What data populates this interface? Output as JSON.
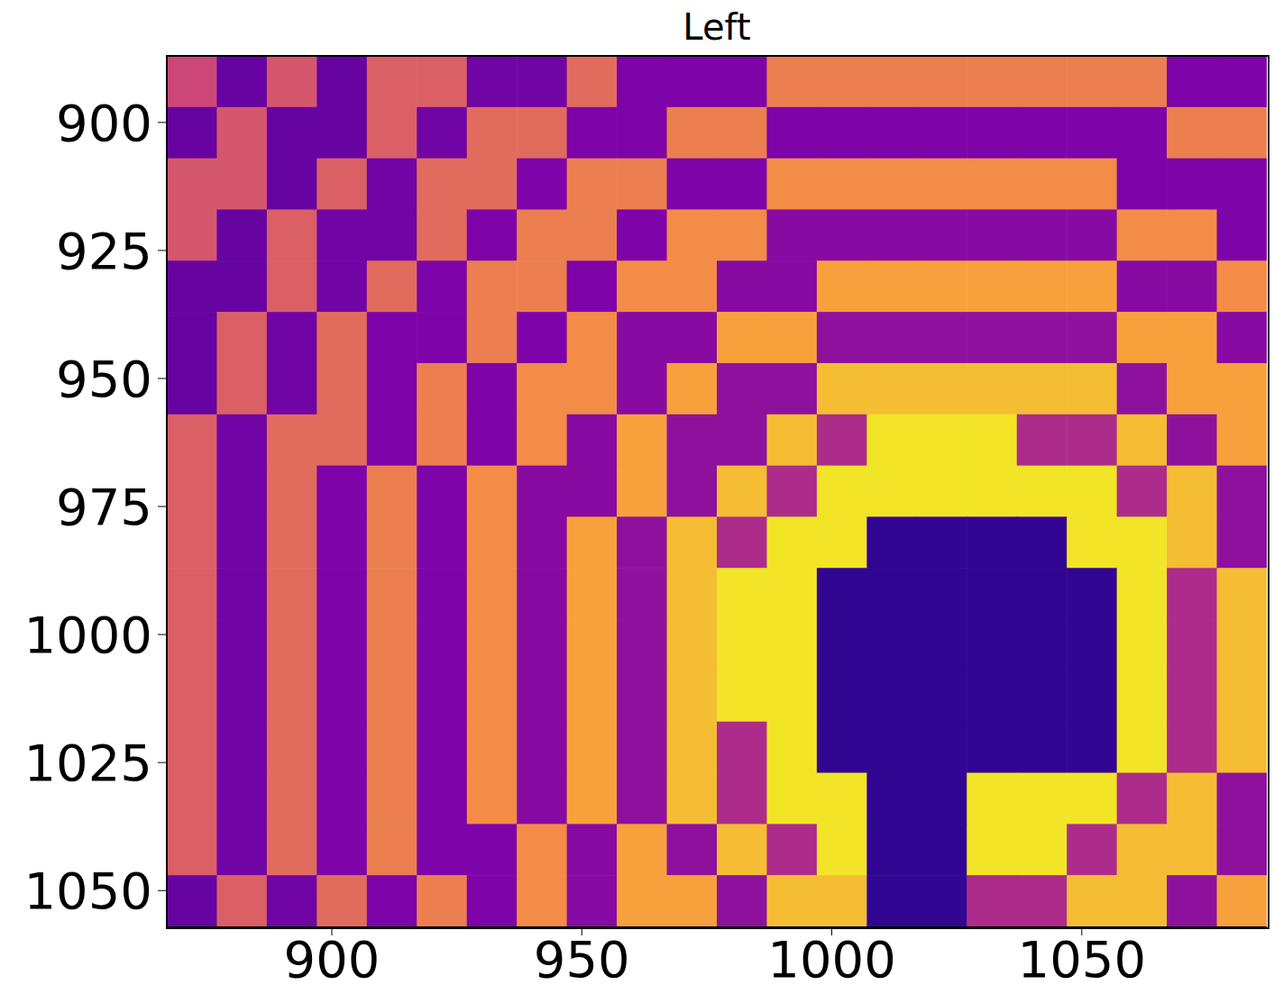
{
  "chart_data": {
    "type": "heatmap",
    "title": "Left",
    "x": [
      872,
      882,
      892,
      902,
      912,
      922,
      932,
      942,
      952,
      962,
      972,
      982,
      992,
      1002,
      1012,
      1022,
      1032,
      1042,
      1052,
      1062,
      1072,
      1082
    ],
    "y": [
      892,
      902,
      912,
      922,
      932,
      942,
      952,
      962,
      972,
      982,
      992,
      1002,
      1012,
      1022,
      1032,
      1042,
      1052
    ],
    "cells": [
      [
        0.5,
        0.2,
        0.55,
        0.2,
        0.58,
        0.58,
        0.22,
        0.22,
        0.62,
        0.25,
        0.25,
        0.25,
        0.68,
        0.68,
        0.68,
        0.68,
        0.68,
        0.68,
        0.68,
        0.68,
        0.25,
        0.25
      ],
      [
        0.2,
        0.55,
        0.2,
        0.2,
        0.58,
        0.22,
        0.62,
        0.62,
        0.25,
        0.25,
        0.68,
        0.68,
        0.25,
        0.25,
        0.25,
        0.25,
        0.25,
        0.25,
        0.25,
        0.25,
        0.68,
        0.68
      ],
      [
        0.55,
        0.55,
        0.2,
        0.58,
        0.22,
        0.62,
        0.62,
        0.25,
        0.68,
        0.68,
        0.25,
        0.25,
        0.72,
        0.72,
        0.72,
        0.72,
        0.72,
        0.72,
        0.72,
        0.25,
        0.25,
        0.25
      ],
      [
        0.55,
        0.2,
        0.58,
        0.22,
        0.22,
        0.62,
        0.25,
        0.68,
        0.68,
        0.25,
        0.72,
        0.72,
        0.28,
        0.28,
        0.28,
        0.28,
        0.28,
        0.28,
        0.28,
        0.72,
        0.72,
        0.25
      ],
      [
        0.2,
        0.2,
        0.58,
        0.22,
        0.62,
        0.25,
        0.68,
        0.68,
        0.25,
        0.72,
        0.72,
        0.28,
        0.28,
        0.78,
        0.78,
        0.78,
        0.78,
        0.78,
        0.78,
        0.28,
        0.28,
        0.72
      ],
      [
        0.2,
        0.58,
        0.22,
        0.62,
        0.25,
        0.25,
        0.68,
        0.25,
        0.72,
        0.28,
        0.28,
        0.78,
        0.78,
        0.3,
        0.3,
        0.3,
        0.3,
        0.3,
        0.3,
        0.78,
        0.78,
        0.28
      ],
      [
        0.2,
        0.58,
        0.22,
        0.62,
        0.25,
        0.68,
        0.25,
        0.72,
        0.72,
        0.28,
        0.78,
        0.3,
        0.3,
        0.85,
        0.85,
        0.85,
        0.85,
        0.85,
        0.85,
        0.3,
        0.78,
        0.78
      ],
      [
        0.58,
        0.22,
        0.62,
        0.62,
        0.25,
        0.68,
        0.25,
        0.72,
        0.28,
        0.78,
        0.3,
        0.3,
        0.85,
        0.4,
        0.95,
        0.95,
        0.95,
        0.4,
        0.4,
        0.85,
        0.3,
        0.78
      ],
      [
        0.58,
        0.22,
        0.62,
        0.25,
        0.68,
        0.25,
        0.72,
        0.28,
        0.28,
        0.78,
        0.3,
        0.85,
        0.4,
        0.95,
        0.95,
        0.95,
        0.95,
        0.95,
        0.95,
        0.4,
        0.85,
        0.3
      ],
      [
        0.58,
        0.22,
        0.62,
        0.25,
        0.68,
        0.25,
        0.72,
        0.28,
        0.78,
        0.3,
        0.85,
        0.4,
        0.95,
        0.95,
        0.08,
        0.08,
        0.08,
        0.08,
        0.95,
        0.95,
        0.85,
        0.3
      ],
      [
        0.58,
        0.22,
        0.62,
        0.25,
        0.68,
        0.25,
        0.72,
        0.28,
        0.78,
        0.3,
        0.85,
        0.95,
        0.95,
        0.08,
        0.08,
        0.08,
        0.08,
        0.08,
        0.08,
        0.95,
        0.4,
        0.85
      ],
      [
        0.58,
        0.22,
        0.62,
        0.25,
        0.68,
        0.25,
        0.72,
        0.28,
        0.78,
        0.3,
        0.85,
        0.95,
        0.95,
        0.08,
        0.08,
        0.08,
        0.08,
        0.08,
        0.08,
        0.95,
        0.4,
        0.85
      ],
      [
        0.58,
        0.22,
        0.62,
        0.25,
        0.68,
        0.25,
        0.72,
        0.28,
        0.78,
        0.3,
        0.85,
        0.95,
        0.95,
        0.08,
        0.08,
        0.08,
        0.08,
        0.08,
        0.08,
        0.95,
        0.4,
        0.85
      ],
      [
        0.58,
        0.22,
        0.62,
        0.25,
        0.68,
        0.25,
        0.72,
        0.28,
        0.78,
        0.3,
        0.85,
        0.4,
        0.95,
        0.08,
        0.08,
        0.08,
        0.08,
        0.08,
        0.08,
        0.95,
        0.4,
        0.85
      ],
      [
        0.58,
        0.22,
        0.62,
        0.25,
        0.68,
        0.25,
        0.72,
        0.28,
        0.78,
        0.3,
        0.85,
        0.4,
        0.95,
        0.95,
        0.08,
        0.08,
        0.95,
        0.95,
        0.95,
        0.4,
        0.85,
        0.3
      ],
      [
        0.58,
        0.22,
        0.62,
        0.25,
        0.68,
        0.25,
        0.25,
        0.72,
        0.28,
        0.78,
        0.3,
        0.85,
        0.4,
        0.95,
        0.08,
        0.08,
        0.95,
        0.95,
        0.4,
        0.85,
        0.85,
        0.3
      ],
      [
        0.2,
        0.58,
        0.22,
        0.62,
        0.25,
        0.68,
        0.25,
        0.72,
        0.28,
        0.78,
        0.78,
        0.3,
        0.85,
        0.85,
        0.08,
        0.08,
        0.4,
        0.4,
        0.85,
        0.85,
        0.3,
        0.78
      ]
    ],
    "zlim": [
      0,
      1
    ],
    "xlim": [
      867,
      1087
    ],
    "ylim": [
      887,
      1057
    ],
    "xticks": [
      900,
      950,
      1000,
      1050
    ],
    "yticks": [
      900,
      925,
      950,
      975,
      1000,
      1025,
      1050
    ],
    "grid": false
  }
}
